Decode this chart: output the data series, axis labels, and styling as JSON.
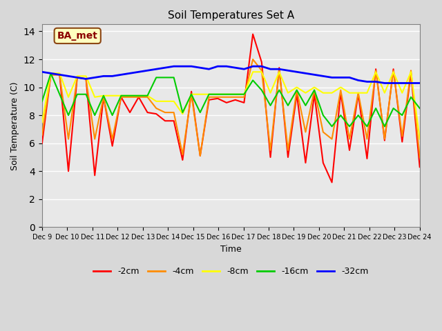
{
  "title": "Soil Temperatures Set A",
  "xlabel": "Time",
  "ylabel": "Soil Temperature (C)",
  "ylim": [
    0,
    14.5
  ],
  "yticks": [
    0,
    2,
    4,
    6,
    8,
    10,
    12,
    14
  ],
  "annotation_text": "BA_met",
  "annotation_color": "#8B0000",
  "annotation_bg": "#FFFFC0",
  "x_tick_labels": [
    "Dec 9",
    "Dec 10",
    "Dec 11",
    "Dec 12",
    "Dec 13",
    "Dec 14",
    "Dec 15",
    "Dec 16",
    "Dec 17",
    "Dec 18",
    "Dec 19",
    "Dec 20",
    "Dec 21",
    "Dec 22",
    "Dec 23",
    "Dec 24"
  ],
  "background_color": "#E8E8E8",
  "plot_bg": "#E8E8E8",
  "line_colors": {
    "-2cm": "#FF0000",
    "-4cm": "#FF8C00",
    "-8cm": "#FFFF00",
    "-16cm": "#00CC00",
    "-32cm": "#0000FF"
  },
  "series": {
    "-2cm": [
      6.0,
      10.9,
      10.9,
      4.0,
      10.7,
      10.6,
      3.7,
      9.3,
      5.8,
      9.3,
      8.2,
      9.3,
      8.2,
      8.1,
      7.6,
      7.6,
      4.8,
      9.7,
      5.1,
      9.1,
      9.2,
      8.9,
      9.1,
      8.9,
      13.8,
      11.8,
      5.0,
      11.4,
      5.0,
      9.5,
      4.6,
      9.5,
      4.6,
      3.2,
      9.6,
      5.5,
      9.5,
      4.9,
      11.3,
      6.2,
      11.3,
      6.1,
      11.0,
      4.3
    ],
    "-4cm": [
      6.6,
      10.9,
      10.9,
      6.3,
      10.7,
      10.6,
      6.3,
      9.3,
      6.3,
      9.3,
      9.3,
      9.3,
      9.3,
      8.5,
      8.2,
      8.2,
      5.2,
      9.5,
      5.1,
      9.3,
      9.3,
      9.3,
      9.3,
      9.3,
      12.0,
      11.2,
      5.5,
      11.2,
      5.5,
      9.8,
      6.8,
      9.8,
      6.8,
      6.3,
      9.8,
      6.3,
      9.6,
      6.3,
      11.2,
      6.3,
      11.2,
      6.5,
      11.2,
      5.0
    ],
    "-8cm": [
      7.5,
      11.0,
      11.0,
      9.3,
      10.8,
      10.8,
      9.3,
      9.4,
      9.4,
      9.4,
      9.4,
      9.4,
      9.4,
      9.0,
      9.0,
      9.0,
      8.1,
      9.5,
      9.5,
      9.5,
      9.5,
      9.5,
      9.5,
      9.5,
      11.1,
      11.1,
      9.6,
      11.1,
      9.6,
      10.0,
      9.6,
      10.0,
      9.6,
      9.6,
      10.0,
      9.6,
      9.6,
      9.6,
      11.1,
      9.6,
      11.1,
      9.6,
      11.1,
      6.3
    ],
    "-16cm": [
      9.0,
      11.0,
      9.5,
      8.0,
      9.5,
      9.5,
      8.0,
      9.4,
      8.0,
      9.4,
      9.4,
      9.4,
      9.4,
      10.7,
      10.7,
      10.7,
      8.2,
      9.5,
      8.2,
      9.5,
      9.5,
      9.5,
      9.5,
      9.5,
      10.5,
      9.8,
      8.7,
      9.8,
      8.7,
      9.8,
      8.7,
      9.8,
      8.0,
      7.2,
      8.0,
      7.2,
      8.0,
      7.2,
      8.5,
      7.2,
      8.5,
      8.0,
      9.3,
      8.5
    ],
    "-32cm": [
      11.1,
      11.0,
      10.9,
      10.8,
      10.7,
      10.6,
      10.7,
      10.8,
      10.8,
      10.9,
      11.0,
      11.1,
      11.2,
      11.3,
      11.4,
      11.5,
      11.5,
      11.5,
      11.4,
      11.3,
      11.5,
      11.5,
      11.4,
      11.3,
      11.5,
      11.5,
      11.3,
      11.3,
      11.2,
      11.1,
      11.0,
      10.9,
      10.8,
      10.7,
      10.7,
      10.7,
      10.5,
      10.4,
      10.4,
      10.3,
      10.3,
      10.3,
      10.3,
      10.3
    ]
  }
}
